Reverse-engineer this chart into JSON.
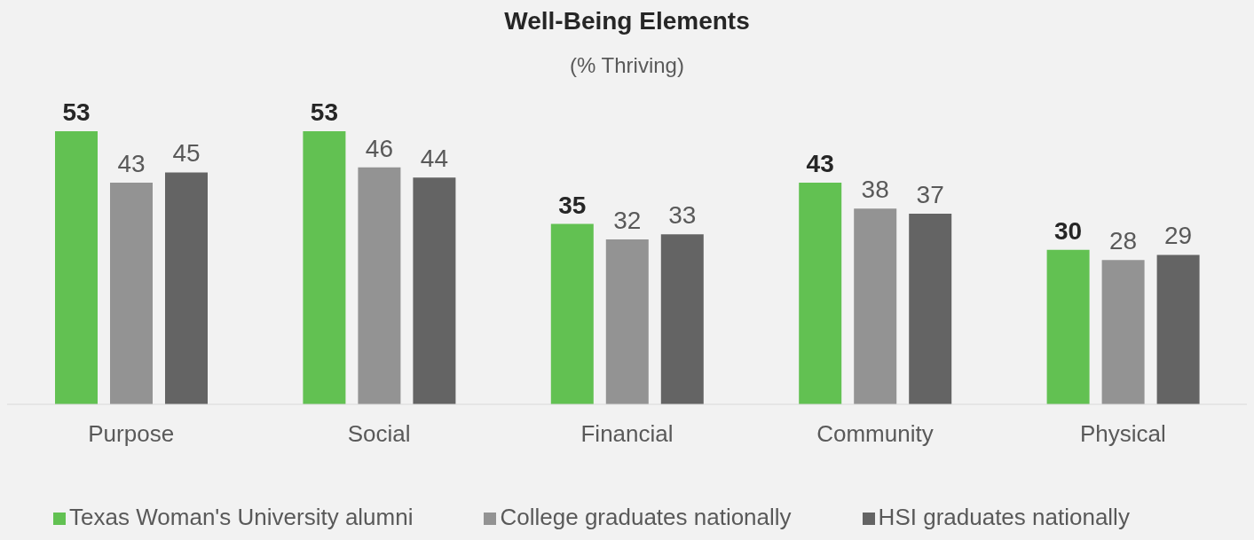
{
  "chart_data": {
    "type": "bar",
    "title": "Well-Being Elements",
    "subtitle": "(% Thriving)",
    "categories": [
      "Purpose",
      "Social",
      "Financial",
      "Community",
      "Physical"
    ],
    "series": [
      {
        "name": "Texas Woman's University alumni",
        "color": "#62c152",
        "values": [
          53,
          53,
          35,
          43,
          30
        ]
      },
      {
        "name": "College graduates nationally",
        "color": "#939393",
        "values": [
          43,
          46,
          32,
          38,
          28
        ]
      },
      {
        "name": "HSI graduates nationally",
        "color": "#646464",
        "values": [
          45,
          44,
          33,
          37,
          29
        ]
      }
    ],
    "data_labels": true,
    "legend": "bottom",
    "grid": false
  }
}
